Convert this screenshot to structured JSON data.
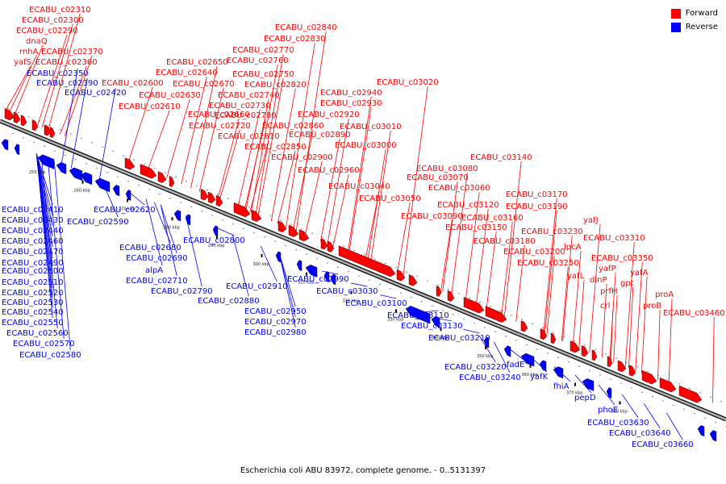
{
  "caption": "Escherichia coli ABU 83972, complete genome. - 0..5131397",
  "legend": [
    {
      "label": "Forward",
      "color": "#ff0000"
    },
    {
      "label": "Reverse",
      "color": "#0000ff"
    }
  ],
  "colors": {
    "forward": "#ff0000",
    "reverse": "#0000ff",
    "backbone": "#808080",
    "line": "#000000"
  },
  "axis": {
    "unit": "kbp",
    "ticks": [
      {
        "label": "250 kbp",
        "kbp": 250
      },
      {
        "label": "260 kbp",
        "kbp": 260
      },
      {
        "label": "270 kbp",
        "kbp": 270
      },
      {
        "label": "280 kbp",
        "kbp": 280
      },
      {
        "label": "290 kbp",
        "kbp": 290
      },
      {
        "label": "300 kbp",
        "kbp": 300
      },
      {
        "label": "310 kbp",
        "kbp": 310
      },
      {
        "label": "320 kbp",
        "kbp": 320
      },
      {
        "label": "330 kbp",
        "kbp": 330
      },
      {
        "label": "340 kbp",
        "kbp": 340
      },
      {
        "label": "350 kbp",
        "kbp": 350
      },
      {
        "label": "360 kbp",
        "kbp": 360
      },
      {
        "label": "370 kbp",
        "kbp": 370
      },
      {
        "label": "380 kbp",
        "kbp": 380
      }
    ]
  },
  "forward_genes": [
    "ECABU_c02310",
    "ECABU_c02300",
    "ECABU_c02290",
    "dnaQ",
    "rnhA",
    "yafS",
    "ECABU_c02370",
    "ECABU_c02360",
    "ECABU_c02600",
    "ECABU_c02610",
    "ECABU_c02650",
    "ECABU_c02640",
    "ECABU_c02630",
    "ECABU_c02670",
    "ECABU_c02660",
    "ECABU_c02840",
    "ECABU_c02830",
    "ECABU_c02770",
    "ECABU_c02760",
    "ECABU_c02750",
    "ECABU_c02820",
    "ECABU_c02740",
    "ECABU_c02730",
    "ECABU_c02780",
    "ECABU_c02720",
    "ECABU_c02810",
    "ECABU_c02860",
    "ECABU_c02850",
    "ECABU_c02890",
    "ECABU_c02900",
    "ECABU_c02960",
    "ECABU_c02940",
    "ECABU_c02930",
    "ECABU_c02920",
    "ECABU_c03020",
    "ECABU_c03010",
    "ECABU_c03000",
    "ECABU_c03040",
    "ECABU_c03050",
    "ECABU_c03080",
    "ECABU_c03070",
    "ECABU_c03060",
    "ECABU_c03140",
    "ECABU_c03090",
    "ECABU_c03120",
    "ECABU_c03170",
    "ECABU_c03160",
    "ECABU_c03150",
    "ECABU_c03190",
    "ECABU_c03180",
    "ECABU_c03230",
    "ECABU_c03200",
    "ECABU_c03250",
    "yafJ",
    "lpcA",
    "yafL",
    "ECABU_c03310",
    "ECABU_c03350",
    "yafP",
    "dinP",
    "yafA",
    "prfH",
    "gpt",
    "crl",
    "proB",
    "proA",
    "ECABU_c03460"
  ],
  "reverse_genes": [
    "ECABU_c02350",
    "ECABU_c02390",
    "ECABU_c02420",
    "ECABU_c02410",
    "ECABU_c02430",
    "ECABU_c02440",
    "ECABU_c02460",
    "ECABU_c02470",
    "ECABU_c02490",
    "ECABU_c02500",
    "ECABU_c02510",
    "ECABU_c02520",
    "ECABU_c02530",
    "ECABU_c02540",
    "ECABU_c02550",
    "ECABU_c02560",
    "ECABU_c02570",
    "ECABU_c02580",
    "ECABU_c02590",
    "ECABU_c02620",
    "ECABU_c02680",
    "ECABU_c02690",
    "alpA",
    "ECABU_c02710",
    "ECABU_c02790",
    "ECABU_c02800",
    "ECABU_c02910",
    "ECABU_c02880",
    "ECABU_c02950",
    "ECABU_c02970",
    "ECABU_c02980",
    "ECABU_c02990",
    "ECABU_c03030",
    "ECABU_c03100",
    "ECABU_c03110",
    "ECABU_c03130",
    "ECABU_c03210",
    "ECABU_c03220",
    "ECABU_c03240",
    "fadE",
    "yafK",
    "fhiA",
    "pepD",
    "phoE",
    "ECABU_c03630",
    "ECABU_c03640",
    "ECABU_c03660"
  ]
}
